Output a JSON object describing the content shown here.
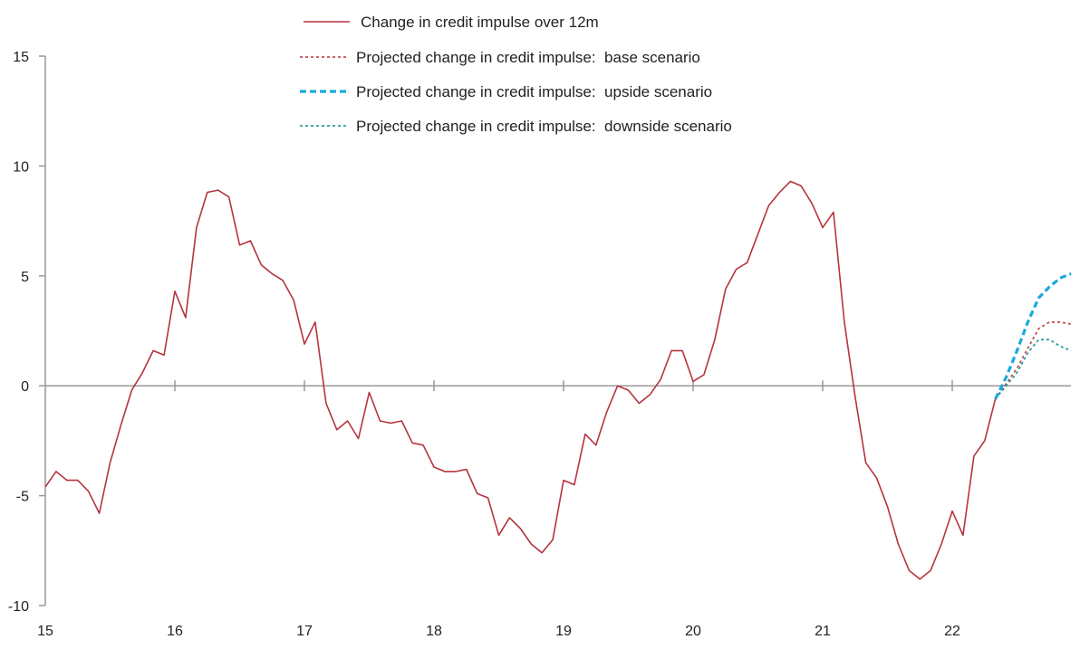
{
  "chart_data": {
    "type": "line",
    "xlim": [
      15,
      23
    ],
    "ylim": [
      -10,
      15
    ],
    "yticks": [
      -10,
      -5,
      0,
      5,
      10,
      15
    ],
    "ytick_labels": [
      "-10",
      "-5",
      "0",
      "5",
      "10",
      "15"
    ],
    "xticks": [
      15,
      16,
      17,
      18,
      19,
      20,
      21,
      22
    ],
    "xtick_labels": [
      "15",
      "16",
      "17",
      "18",
      "19",
      "20",
      "21",
      "22"
    ],
    "grid": false,
    "legend_position": "top-center",
    "series": [
      {
        "name": "Change in credit impulse over 12m",
        "color": "#b5343e",
        "style": "solid",
        "points": [
          [
            15.0,
            -4.6
          ],
          [
            15.083,
            -3.9
          ],
          [
            15.167,
            -4.3
          ],
          [
            15.25,
            -4.3
          ],
          [
            15.333,
            -4.8
          ],
          [
            15.417,
            -5.8
          ],
          [
            15.5,
            -3.5
          ],
          [
            15.583,
            -1.8
          ],
          [
            15.667,
            -0.2
          ],
          [
            15.75,
            0.6
          ],
          [
            15.833,
            1.6
          ],
          [
            15.917,
            1.4
          ],
          [
            16.0,
            4.3
          ],
          [
            16.083,
            3.1
          ],
          [
            16.167,
            7.2
          ],
          [
            16.25,
            8.8
          ],
          [
            16.333,
            8.9
          ],
          [
            16.417,
            8.6
          ],
          [
            16.5,
            6.4
          ],
          [
            16.583,
            6.6
          ],
          [
            16.667,
            5.5
          ],
          [
            16.75,
            5.1
          ],
          [
            16.833,
            4.8
          ],
          [
            16.917,
            3.9
          ],
          [
            17.0,
            1.9
          ],
          [
            17.083,
            2.9
          ],
          [
            17.167,
            -0.8
          ],
          [
            17.25,
            -2.0
          ],
          [
            17.333,
            -1.6
          ],
          [
            17.417,
            -2.4
          ],
          [
            17.5,
            -0.3
          ],
          [
            17.583,
            -1.6
          ],
          [
            17.667,
            -1.7
          ],
          [
            17.75,
            -1.6
          ],
          [
            17.833,
            -2.6
          ],
          [
            17.917,
            -2.7
          ],
          [
            18.0,
            -3.7
          ],
          [
            18.083,
            -3.9
          ],
          [
            18.167,
            -3.9
          ],
          [
            18.25,
            -3.8
          ],
          [
            18.333,
            -4.9
          ],
          [
            18.417,
            -5.1
          ],
          [
            18.5,
            -6.8
          ],
          [
            18.583,
            -6.0
          ],
          [
            18.667,
            -6.5
          ],
          [
            18.75,
            -7.2
          ],
          [
            18.833,
            -7.6
          ],
          [
            18.917,
            -7.0
          ],
          [
            19.0,
            -4.3
          ],
          [
            19.083,
            -4.5
          ],
          [
            19.167,
            -2.2
          ],
          [
            19.25,
            -2.7
          ],
          [
            19.333,
            -1.2
          ],
          [
            19.417,
            0.0
          ],
          [
            19.5,
            -0.2
          ],
          [
            19.583,
            -0.8
          ],
          [
            19.667,
            -0.4
          ],
          [
            19.75,
            0.3
          ],
          [
            19.833,
            1.6
          ],
          [
            19.917,
            1.6
          ],
          [
            20.0,
            0.2
          ],
          [
            20.083,
            0.5
          ],
          [
            20.167,
            2.1
          ],
          [
            20.25,
            4.4
          ],
          [
            20.333,
            5.3
          ],
          [
            20.417,
            5.6
          ],
          [
            20.5,
            6.9
          ],
          [
            20.583,
            8.2
          ],
          [
            20.667,
            8.8
          ],
          [
            20.75,
            9.3
          ],
          [
            20.833,
            9.1
          ],
          [
            20.917,
            8.3
          ],
          [
            21.0,
            7.2
          ],
          [
            21.083,
            7.9
          ],
          [
            21.167,
            2.9
          ],
          [
            21.25,
            -0.5
          ],
          [
            21.333,
            -3.5
          ],
          [
            21.417,
            -4.2
          ],
          [
            21.5,
            -5.5
          ],
          [
            21.583,
            -7.2
          ],
          [
            21.667,
            -8.4
          ],
          [
            21.75,
            -8.8
          ],
          [
            21.833,
            -8.4
          ],
          [
            21.917,
            -7.2
          ],
          [
            22.0,
            -5.7
          ],
          [
            22.083,
            -6.8
          ],
          [
            22.167,
            -3.2
          ],
          [
            22.25,
            -2.5
          ],
          [
            22.333,
            -0.6
          ]
        ]
      },
      {
        "name": "Projected change in credit impulse:  base scenario",
        "color": "#c0504d",
        "style": "dotted",
        "points": [
          [
            22.333,
            -0.6
          ],
          [
            22.5,
            0.8
          ],
          [
            22.583,
            1.7
          ],
          [
            22.667,
            2.6
          ],
          [
            22.75,
            2.9
          ],
          [
            22.833,
            2.9
          ],
          [
            22.917,
            2.8
          ]
        ]
      },
      {
        "name": "Projected change in credit impulse:  upside scenario",
        "color": "#1ba9dc",
        "style": "dashed",
        "points": [
          [
            22.333,
            -0.6
          ],
          [
            22.417,
            0.4
          ],
          [
            22.5,
            1.6
          ],
          [
            22.583,
            2.9
          ],
          [
            22.667,
            4.0
          ],
          [
            22.75,
            4.5
          ],
          [
            22.833,
            4.9
          ],
          [
            22.917,
            5.1
          ]
        ]
      },
      {
        "name": "Projected change in credit impulse:  downside scenario",
        "color": "#2e9aa0",
        "style": "dotted",
        "points": [
          [
            22.333,
            -0.6
          ],
          [
            22.5,
            0.6
          ],
          [
            22.583,
            1.5
          ],
          [
            22.667,
            2.1
          ],
          [
            22.75,
            2.1
          ],
          [
            22.833,
            1.8
          ],
          [
            22.917,
            1.6
          ]
        ]
      }
    ]
  }
}
